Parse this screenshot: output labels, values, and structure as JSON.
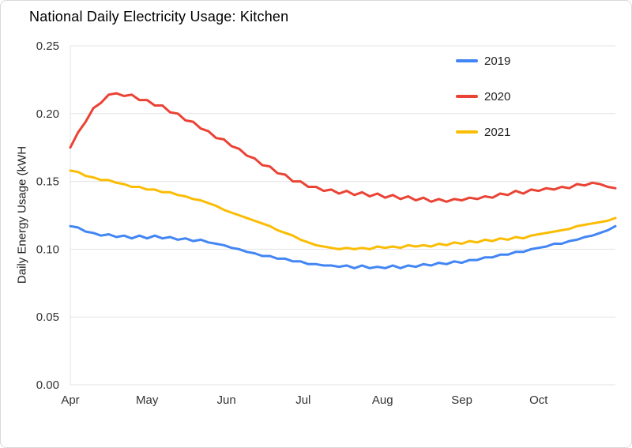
{
  "chart_data": {
    "type": "line",
    "title": "National Daily Electricity Usage: Kitchen",
    "xlabel": "",
    "ylabel": "Daily Energy Usage (kWH",
    "ylim": [
      0,
      0.25
    ],
    "yticks": [
      0,
      0.05,
      0.1,
      0.15,
      0.2,
      0.25
    ],
    "ytick_labels": [
      "0.00",
      "0.05",
      "0.10",
      "0.15",
      "0.20",
      "0.25"
    ],
    "grid": "horizontal",
    "legend_position": "top-right-inside",
    "x_step_days": 3,
    "x_max_day": 213,
    "month_ticks": [
      {
        "label": "Apr",
        "day": 0
      },
      {
        "label": "May",
        "day": 30
      },
      {
        "label": "Jun",
        "day": 61
      },
      {
        "label": "Jul",
        "day": 91
      },
      {
        "label": "Aug",
        "day": 122
      },
      {
        "label": "Sep",
        "day": 153
      },
      {
        "label": "Oct",
        "day": 183
      }
    ],
    "series": [
      {
        "name": "2019",
        "color": "#4285F4",
        "values": [
          0.117,
          0.116,
          0.113,
          0.112,
          0.11,
          0.111,
          0.109,
          0.11,
          0.108,
          0.11,
          0.108,
          0.11,
          0.108,
          0.109,
          0.107,
          0.108,
          0.106,
          0.107,
          0.105,
          0.104,
          0.103,
          0.101,
          0.1,
          0.098,
          0.097,
          0.095,
          0.095,
          0.093,
          0.093,
          0.091,
          0.091,
          0.089,
          0.089,
          0.088,
          0.088,
          0.087,
          0.088,
          0.086,
          0.088,
          0.086,
          0.087,
          0.086,
          0.088,
          0.086,
          0.088,
          0.087,
          0.089,
          0.088,
          0.09,
          0.089,
          0.091,
          0.09,
          0.092,
          0.092,
          0.094,
          0.094,
          0.096,
          0.096,
          0.098,
          0.098,
          0.1,
          0.101,
          0.102,
          0.104,
          0.104,
          0.106,
          0.107,
          0.109,
          0.11,
          0.112,
          0.114,
          0.117
        ]
      },
      {
        "name": "2020",
        "color": "#EA4335",
        "values": [
          0.175,
          0.186,
          0.194,
          0.204,
          0.208,
          0.214,
          0.215,
          0.213,
          0.214,
          0.21,
          0.21,
          0.206,
          0.206,
          0.201,
          0.2,
          0.195,
          0.194,
          0.189,
          0.187,
          0.182,
          0.181,
          0.176,
          0.174,
          0.169,
          0.167,
          0.162,
          0.161,
          0.156,
          0.155,
          0.15,
          0.15,
          0.146,
          0.146,
          0.143,
          0.144,
          0.141,
          0.143,
          0.14,
          0.142,
          0.139,
          0.141,
          0.138,
          0.14,
          0.137,
          0.139,
          0.136,
          0.138,
          0.135,
          0.137,
          0.135,
          0.137,
          0.136,
          0.138,
          0.137,
          0.139,
          0.138,
          0.141,
          0.14,
          0.143,
          0.141,
          0.144,
          0.143,
          0.145,
          0.144,
          0.146,
          0.145,
          0.148,
          0.147,
          0.149,
          0.148,
          0.146,
          0.145
        ]
      },
      {
        "name": "2021",
        "color": "#FBBC04",
        "values": [
          0.158,
          0.157,
          0.154,
          0.153,
          0.151,
          0.151,
          0.149,
          0.148,
          0.146,
          0.146,
          0.144,
          0.144,
          0.142,
          0.142,
          0.14,
          0.139,
          0.137,
          0.136,
          0.134,
          0.132,
          0.129,
          0.127,
          0.125,
          0.123,
          0.121,
          0.119,
          0.117,
          0.114,
          0.112,
          0.11,
          0.107,
          0.105,
          0.103,
          0.102,
          0.101,
          0.1,
          0.101,
          0.1,
          0.101,
          0.1,
          0.102,
          0.101,
          0.102,
          0.101,
          0.103,
          0.102,
          0.103,
          0.102,
          0.104,
          0.103,
          0.105,
          0.104,
          0.106,
          0.105,
          0.107,
          0.106,
          0.108,
          0.107,
          0.109,
          0.108,
          0.11,
          0.111,
          0.112,
          0.113,
          0.114,
          0.115,
          0.117,
          0.118,
          0.119,
          0.12,
          0.121,
          0.123
        ]
      }
    ],
    "colors": {
      "grid": "#e3e3e3",
      "tick_text": "#333333",
      "title_text": "#000000"
    }
  }
}
